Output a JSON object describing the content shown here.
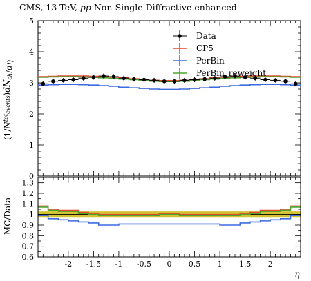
{
  "chart_data": {
    "type": "line",
    "title_parts": [
      {
        "text": "CMS, 13 TeV, ",
        "italic": false
      },
      {
        "text": "pp",
        "italic": true
      },
      {
        "text": " Non-Single Diffractive enhanced",
        "italic": false
      }
    ],
    "xlabel": "η",
    "ylabel_main_parts": [
      {
        "text": "(1/",
        "italic": false
      },
      {
        "text": "N",
        "italic": true
      },
      {
        "text": "tot",
        "italic": true,
        "shift": "super"
      },
      {
        "text": "events",
        "italic": true,
        "shift": "sub"
      },
      {
        "text": ")",
        "italic": false
      },
      {
        "text": "dN",
        "italic": true
      },
      {
        "text": "ch",
        "italic": true,
        "shift": "sub"
      },
      {
        "text": "/",
        "italic": false
      },
      {
        "text": "dη",
        "italic": true
      }
    ],
    "ylabel_ratio": "MC/Data",
    "xlim": [
      -2.6,
      2.6
    ],
    "ylim_main": [
      0,
      5
    ],
    "ylim_ratio": [
      0.6,
      1.35
    ],
    "xticks": [
      -2,
      -1.5,
      -1,
      -0.5,
      0,
      0.5,
      1,
      1.5,
      2
    ],
    "xtick_labels": [
      "-2",
      "-1.5",
      "-1",
      "-0.5",
      "0",
      "0.5",
      "1",
      "1.5",
      "2"
    ],
    "yticks_main": [
      0,
      1,
      2,
      3,
      4,
      5
    ],
    "ytick_labels_main": [
      "0",
      "1",
      "2",
      "3",
      "4",
      "5"
    ],
    "yticks_ratio": [
      0.6,
      0.7,
      0.8,
      0.9,
      1,
      1.1,
      1.2,
      1.3
    ],
    "ytick_labels_ratio": [
      "0.6",
      "0.7",
      "0.8",
      "0.9",
      "1",
      "1.1",
      "1.2",
      "1.3"
    ],
    "bin_edges": [
      -2.6,
      -2.4,
      -2.2,
      -2.0,
      -1.8,
      -1.6,
      -1.4,
      -1.2,
      -1.0,
      -0.8,
      -0.6,
      -0.4,
      -0.2,
      0.0,
      0.2,
      0.4,
      0.6,
      0.8,
      1.0,
      1.2,
      1.4,
      1.6,
      1.8,
      2.0,
      2.2,
      2.4,
      2.6
    ],
    "legend_position": "top-right",
    "data": {
      "name": "Data",
      "color": "#000000",
      "x": [
        -2.5,
        -2.3,
        -2.1,
        -1.9,
        -1.7,
        -1.5,
        -1.3,
        -1.1,
        -0.9,
        -0.7,
        -0.5,
        -0.3,
        -0.1,
        0.1,
        0.3,
        0.5,
        0.7,
        0.9,
        1.1,
        1.3,
        1.5,
        1.7,
        1.9,
        2.1,
        2.3,
        2.5
      ],
      "y": [
        2.97,
        3.05,
        3.08,
        3.1,
        3.15,
        3.18,
        3.22,
        3.2,
        3.15,
        3.12,
        3.1,
        3.08,
        3.05,
        3.05,
        3.08,
        3.1,
        3.12,
        3.15,
        3.2,
        3.22,
        3.18,
        3.15,
        3.1,
        3.08,
        3.05,
        2.97
      ],
      "yerr": [
        0.07,
        0.07,
        0.07,
        0.08,
        0.08,
        0.08,
        0.08,
        0.08,
        0.08,
        0.08,
        0.08,
        0.08,
        0.08,
        0.08,
        0.08,
        0.08,
        0.08,
        0.08,
        0.08,
        0.08,
        0.08,
        0.08,
        0.08,
        0.07,
        0.07,
        0.07
      ],
      "ratio_band": 0.03,
      "band_color": "#c8b400"
    },
    "series": [
      {
        "name": "CP5",
        "color": "#e8452b",
        "values": [
          3.2,
          3.21,
          3.22,
          3.22,
          3.22,
          3.21,
          3.2,
          3.18,
          3.16,
          3.13,
          3.1,
          3.08,
          3.07,
          3.07,
          3.08,
          3.1,
          3.13,
          3.16,
          3.18,
          3.2,
          3.21,
          3.22,
          3.22,
          3.22,
          3.21,
          3.2
        ],
        "ratio": [
          1.08,
          1.05,
          1.04,
          1.04,
          1.02,
          1.01,
          1.0,
          1.0,
          1.0,
          1.0,
          1.0,
          1.0,
          1.01,
          1.01,
          1.0,
          1.0,
          1.0,
          1.0,
          1.0,
          1.0,
          1.01,
          1.02,
          1.04,
          1.04,
          1.05,
          1.08
        ]
      },
      {
        "name": "PerBin",
        "color": "#3c6ae0",
        "values": [
          2.93,
          2.94,
          2.95,
          2.95,
          2.94,
          2.93,
          2.91,
          2.89,
          2.86,
          2.84,
          2.82,
          2.8,
          2.79,
          2.79,
          2.8,
          2.82,
          2.84,
          2.86,
          2.89,
          2.91,
          2.93,
          2.94,
          2.95,
          2.95,
          2.94,
          2.93
        ],
        "ratio": [
          0.99,
          0.96,
          0.95,
          0.94,
          0.93,
          0.92,
          0.9,
          0.9,
          0.91,
          0.91,
          0.91,
          0.91,
          0.91,
          0.91,
          0.91,
          0.91,
          0.91,
          0.91,
          0.9,
          0.9,
          0.92,
          0.93,
          0.94,
          0.95,
          0.96,
          0.99
        ]
      },
      {
        "name": "PerBin_reweight",
        "color": "#4aa52e",
        "values": [
          3.18,
          3.19,
          3.2,
          3.2,
          3.19,
          3.18,
          3.16,
          3.14,
          3.12,
          3.1,
          3.07,
          3.05,
          3.04,
          3.04,
          3.05,
          3.07,
          3.1,
          3.12,
          3.14,
          3.16,
          3.18,
          3.19,
          3.2,
          3.2,
          3.19,
          3.18
        ],
        "ratio": [
          1.07,
          1.04,
          1.03,
          1.03,
          1.01,
          1.0,
          0.99,
          0.99,
          0.99,
          0.99,
          0.99,
          0.99,
          1.0,
          1.0,
          0.99,
          0.99,
          0.99,
          0.99,
          0.99,
          0.99,
          1.0,
          1.01,
          1.03,
          1.03,
          1.04,
          1.07
        ]
      }
    ]
  }
}
